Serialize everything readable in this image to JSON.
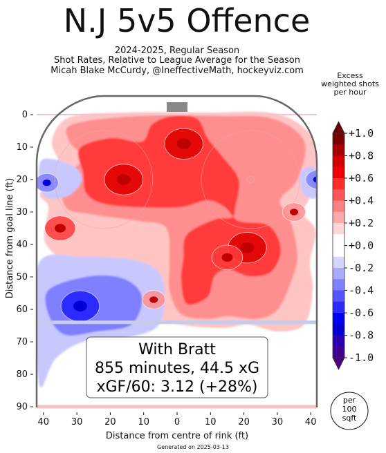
{
  "title": "N.J 5v5 Offence",
  "subtitle_lines": [
    "2024-2025, Regular Season",
    "Shot Rates, Relative to League Average for the Season",
    "Micah Blake McCurdy, @IneffectiveMath, hockeyviz.com"
  ],
  "colorbar_title": [
    "Excess",
    "weighted shots",
    "per hour"
  ],
  "footer": "Generated on 2025-03-13",
  "per_area": [
    "per",
    "100",
    "sqft"
  ],
  "annotation_lines": [
    "With Bratt",
    "855 minutes, 44.5 xG",
    "xGF/60: 3.12 (+28%)"
  ],
  "colors": {
    "strong_red": "#e00000",
    "red": "#ff3b3b",
    "light_red": "#ff8f8f",
    "pale_red": "#ffc4c4",
    "pale_blue": "#c8c8ff",
    "blue": "#7f7fff",
    "strong_blue": "#1c1cff",
    "rink_line": "#666666",
    "blue_line": "#c5cbe8",
    "goal_line": "#f3c3cc"
  },
  "chart_data": {
    "type": "heatmap",
    "xlabel": "Distance from centre of rink (ft)",
    "ylabel": "Distance from goal line (ft)",
    "xlim": [
      42.5,
      -42.5
    ],
    "ylim": [
      90,
      -11
    ],
    "x_ticks": [
      40,
      30,
      20,
      10,
      0,
      10,
      20,
      30,
      40
    ],
    "x_tick_values": [
      -40,
      -30,
      -20,
      -10,
      0,
      10,
      20,
      30,
      40
    ],
    "y_ticks": [
      0,
      10,
      20,
      30,
      40,
      50,
      60,
      70,
      80,
      90
    ],
    "colorbar": {
      "min": -1.0,
      "max": 1.0,
      "tick_labels": [
        "+1.0",
        "+0.8",
        "+0.6",
        "+0.4",
        "+0.2",
        "+0.0",
        "-0.2",
        "-0.4",
        "-0.6",
        "-0.8",
        "-1.0"
      ],
      "tick_values": [
        1.0,
        0.8,
        0.6,
        0.4,
        0.2,
        0.0,
        -0.2,
        -0.4,
        -0.6,
        -0.8,
        -1.0
      ],
      "colors_top_to_bottom": [
        "#7a0000",
        "#a80000",
        "#d40000",
        "#f00000",
        "#ff2a2a",
        "#ff5555",
        "#ff8080",
        "#ffaaaa",
        "#ffd5d5",
        "#ffffff",
        "#ffffff",
        "#d5d5ff",
        "#aaaaff",
        "#8080ff",
        "#5555ff",
        "#2a2aff",
        "#0000f0",
        "#0000d0",
        "#2a00b0",
        "#400090"
      ]
    },
    "hotspots": [
      {
        "x": 16,
        "y": 20,
        "value": 0.6
      },
      {
        "x": -2,
        "y": 9,
        "value": 0.6
      },
      {
        "x": -21,
        "y": 41,
        "value": 0.6
      },
      {
        "x": -15,
        "y": 44,
        "value": 0.4
      },
      {
        "x": 35,
        "y": 35,
        "value": 0.4
      },
      {
        "x": 7,
        "y": 57,
        "value": 0.2
      },
      {
        "x": -35,
        "y": 30,
        "value": 0.2
      },
      {
        "x": 29,
        "y": 59,
        "value": -0.6
      },
      {
        "x": 39,
        "y": 21,
        "value": -0.2
      },
      {
        "x": -42,
        "y": 20,
        "value": -0.2
      }
    ]
  }
}
